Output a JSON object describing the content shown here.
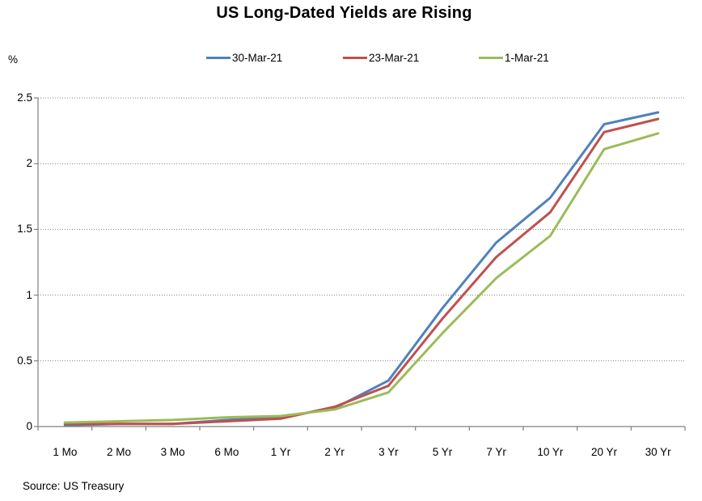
{
  "chart_data": {
    "type": "line",
    "title": "US Long-Dated Yields are Rising",
    "y_unit": "%",
    "source": "Source: US Treasury",
    "categories": [
      "1 Mo",
      "2 Mo",
      "3 Mo",
      "6 Mo",
      "1 Yr",
      "2 Yr",
      "3 Yr",
      "5 Yr",
      "7 Yr",
      "10 Yr",
      "20 Yr",
      "30 Yr"
    ],
    "y_tick_labels": [
      "0",
      "0.5",
      "1",
      "1.5",
      "2",
      "2.5"
    ],
    "y_tick_values": [
      0,
      0.5,
      1,
      1.5,
      2,
      2.5
    ],
    "ylim": [
      0,
      2.5
    ],
    "grid": "horizontal-dotted",
    "legend_position": "top",
    "axis_color": "#808080",
    "grid_color": "#808080",
    "series": [
      {
        "name": "30-Mar-21",
        "color": "#4F81BD",
        "values": [
          0.01,
          0.02,
          0.02,
          0.05,
          0.07,
          0.14,
          0.35,
          0.9,
          1.4,
          1.74,
          2.3,
          2.39
        ]
      },
      {
        "name": "23-Mar-21",
        "color": "#C0504D",
        "values": [
          0.02,
          0.02,
          0.02,
          0.04,
          0.06,
          0.15,
          0.31,
          0.82,
          1.29,
          1.63,
          2.24,
          2.34
        ]
      },
      {
        "name": "1-Mar-21",
        "color": "#9BBB59",
        "values": [
          0.03,
          0.04,
          0.05,
          0.07,
          0.08,
          0.13,
          0.26,
          0.71,
          1.13,
          1.45,
          2.11,
          2.23
        ]
      }
    ]
  }
}
